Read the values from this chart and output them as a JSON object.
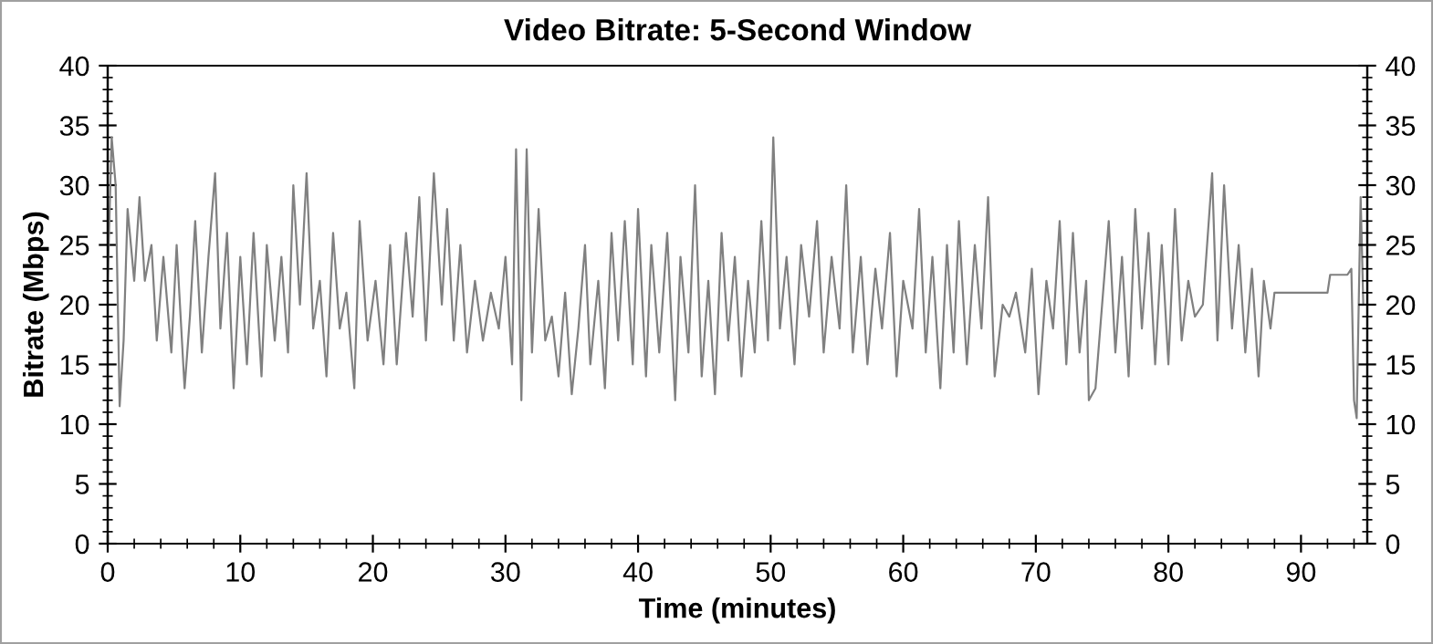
{
  "chart_data": {
    "type": "line",
    "title": "Video Bitrate: 5-Second Window",
    "xlabel": "Time (minutes)",
    "ylabel": "Bitrate (Mbps)",
    "xlim": [
      0,
      95
    ],
    "xticks": [
      0,
      10,
      20,
      30,
      40,
      50,
      60,
      70,
      80,
      90
    ],
    "ylim": [
      0,
      40
    ],
    "yticks": [
      0,
      5,
      10,
      15,
      20,
      25,
      30,
      35,
      40
    ],
    "y2lim": [
      0,
      40
    ],
    "y2ticks": [
      0,
      5,
      10,
      15,
      20,
      25,
      30,
      35,
      40
    ],
    "grid": false,
    "legend": false,
    "marker": "none",
    "line_style": "solid",
    "series": [
      {
        "color": "#808080",
        "x": [
          0,
          0.3,
          0.6,
          0.9,
          1.2,
          1.5,
          2.0,
          2.4,
          2.8,
          3.3,
          3.7,
          4.2,
          4.8,
          5.2,
          5.8,
          6.2,
          6.6,
          7.1,
          7.6,
          8.1,
          8.5,
          9.0,
          9.5,
          10.0,
          10.5,
          11.0,
          11.6,
          12.0,
          12.6,
          13.1,
          13.6,
          14.0,
          14.5,
          15.0,
          15.5,
          16.0,
          16.5,
          17.0,
          17.5,
          18.0,
          18.6,
          19.0,
          19.6,
          20.2,
          20.8,
          21.3,
          21.8,
          22.5,
          23.0,
          23.5,
          24.0,
          24.6,
          25.2,
          25.6,
          26.1,
          26.6,
          27.1,
          27.7,
          28.3,
          28.9,
          29.5,
          30.0,
          30.5,
          30.8,
          31.2,
          31.6,
          32.0,
          32.5,
          33.0,
          33.5,
          34.0,
          34.5,
          35.0,
          35.5,
          36.0,
          36.4,
          37.0,
          37.5,
          38.0,
          38.5,
          39.0,
          39.6,
          40.0,
          40.6,
          41.0,
          41.6,
          42.2,
          42.8,
          43.2,
          43.8,
          44.3,
          44.8,
          45.3,
          45.8,
          46.3,
          46.8,
          47.3,
          47.8,
          48.3,
          48.8,
          49.3,
          49.8,
          50.2,
          50.7,
          51.2,
          51.8,
          52.3,
          52.9,
          53.5,
          54.0,
          54.6,
          55.2,
          55.7,
          56.2,
          56.8,
          57.3,
          57.9,
          58.4,
          59.0,
          59.5,
          60.0,
          60.7,
          61.2,
          61.7,
          62.2,
          62.8,
          63.3,
          63.8,
          64.2,
          64.8,
          65.4,
          65.9,
          66.4,
          66.9,
          67.5,
          68.0,
          68.5,
          69.2,
          69.7,
          70.2,
          70.8,
          71.3,
          71.8,
          72.3,
          72.8,
          73.3,
          73.8,
          74.0,
          74.5,
          75.0,
          75.5,
          76.0,
          76.5,
          77.0,
          77.5,
          78.0,
          78.5,
          79.0,
          79.5,
          80.0,
          80.5,
          81.0,
          81.5,
          82.0,
          82.6,
          83.3,
          83.7,
          84.2,
          84.8,
          85.3,
          85.8,
          86.3,
          86.8,
          87.2,
          87.7,
          88.0,
          88.5,
          92.0,
          92.2,
          93.5,
          93.8,
          94.0,
          94.2,
          94.5,
          94.7
        ],
        "values": [
          22,
          34,
          30,
          11.5,
          17,
          28,
          22,
          29,
          22,
          25,
          17,
          24,
          16,
          25,
          13,
          19,
          27,
          16,
          24,
          31,
          18,
          26,
          13,
          24,
          15,
          26,
          14,
          25,
          17,
          24,
          16,
          30,
          20,
          31,
          18,
          22,
          14,
          26,
          18,
          21,
          13,
          27,
          17,
          22,
          15,
          25,
          15,
          26,
          19,
          29,
          17,
          31,
          20,
          28,
          17,
          25,
          16,
          22,
          17,
          21,
          18,
          24,
          15,
          33,
          12,
          33,
          16,
          28,
          17,
          19,
          14,
          21,
          12.5,
          18,
          25,
          15,
          22,
          13,
          26,
          17,
          27,
          15,
          28,
          14,
          25,
          16,
          26,
          12,
          24,
          16,
          30,
          14,
          22,
          12.5,
          26,
          17,
          24,
          14,
          22,
          16,
          27,
          17,
          34,
          18,
          24,
          15,
          25,
          19,
          27,
          16,
          24,
          18,
          30,
          16,
          24,
          15,
          23,
          18,
          26,
          14,
          22,
          18,
          28,
          16,
          24,
          13,
          25,
          16,
          27,
          15,
          25,
          18,
          29,
          14,
          20,
          19,
          21,
          16,
          23,
          12.5,
          22,
          18,
          27,
          15,
          26,
          16,
          22,
          12,
          13,
          20,
          27,
          16,
          24,
          14,
          28,
          18,
          26,
          15,
          25,
          15,
          28,
          17,
          22,
          19,
          20,
          31,
          17,
          30,
          18,
          25,
          16,
          23,
          14,
          22,
          18,
          21,
          21,
          21,
          22.5,
          22.5,
          23,
          12,
          10.5,
          29,
          20
        ]
      }
    ]
  }
}
